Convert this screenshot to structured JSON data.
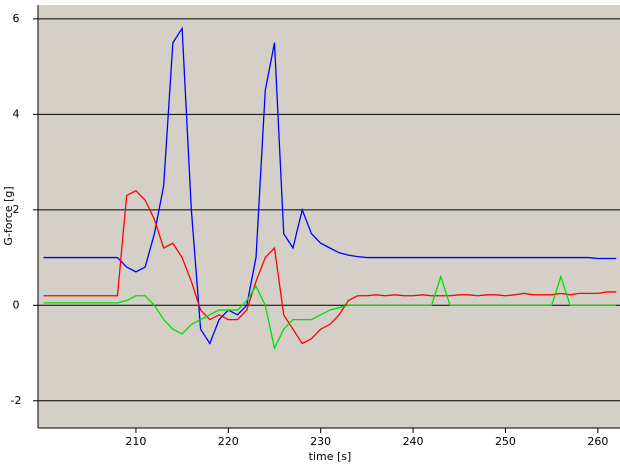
{
  "chart_data": {
    "type": "line",
    "x_label": "time [s]",
    "y_label": "G-force [g]",
    "x": [
      200,
      201,
      202,
      203,
      204,
      205,
      206,
      207,
      208,
      209,
      210,
      211,
      212,
      213,
      214,
      215,
      216,
      217,
      218,
      219,
      220,
      221,
      222,
      223,
      224,
      225,
      226,
      227,
      228,
      229,
      230,
      231,
      232,
      233,
      234,
      235,
      236,
      237,
      238,
      239,
      240,
      241,
      242,
      243,
      244,
      245,
      246,
      247,
      248,
      249,
      250,
      251,
      252,
      253,
      254,
      255,
      256,
      257,
      258,
      259,
      260,
      261,
      262
    ],
    "series": [
      {
        "color": "#0000ff",
        "values": [
          1.0,
          1.0,
          1.0,
          1.0,
          1.0,
          1.0,
          1.0,
          1.0,
          1.0,
          0.8,
          0.7,
          0.8,
          1.5,
          2.5,
          5.5,
          5.8,
          2.0,
          -0.5,
          -0.8,
          -0.3,
          -0.1,
          -0.2,
          0.0,
          1.0,
          4.5,
          5.5,
          1.5,
          1.2,
          2.0,
          1.5,
          1.3,
          1.2,
          1.1,
          1.05,
          1.02,
          1.0,
          1.0,
          1.0,
          1.0,
          1.0,
          1.0,
          1.0,
          1.0,
          1.0,
          1.0,
          1.0,
          1.0,
          1.0,
          1.0,
          1.0,
          1.0,
          1.0,
          1.0,
          1.0,
          1.0,
          1.0,
          1.0,
          1.0,
          1.0,
          1.0,
          0.98,
          0.98,
          0.98
        ]
      },
      {
        "color": "#ff0000",
        "values": [
          0.2,
          0.2,
          0.2,
          0.2,
          0.2,
          0.2,
          0.2,
          0.2,
          0.2,
          2.3,
          2.4,
          2.2,
          1.8,
          1.2,
          1.3,
          1.0,
          0.5,
          -0.1,
          -0.3,
          -0.2,
          -0.3,
          -0.3,
          -0.1,
          0.5,
          1.0,
          1.2,
          -0.2,
          -0.5,
          -0.8,
          -0.7,
          -0.5,
          -0.4,
          -0.2,
          0.1,
          0.2,
          0.2,
          0.22,
          0.2,
          0.22,
          0.2,
          0.2,
          0.22,
          0.2,
          0.2,
          0.2,
          0.22,
          0.22,
          0.2,
          0.22,
          0.22,
          0.2,
          0.22,
          0.25,
          0.22,
          0.22,
          0.22,
          0.25,
          0.22,
          0.25,
          0.25,
          0.25,
          0.28,
          0.28
        ]
      },
      {
        "color": "#00e000",
        "values": [
          0.05,
          0.05,
          0.05,
          0.05,
          0.05,
          0.05,
          0.05,
          0.05,
          0.05,
          0.1,
          0.2,
          0.2,
          0.0,
          -0.3,
          -0.5,
          -0.6,
          -0.4,
          -0.3,
          -0.2,
          -0.1,
          -0.1,
          -0.1,
          0.1,
          0.4,
          0.0,
          -0.9,
          -0.5,
          -0.3,
          -0.3,
          -0.3,
          -0.2,
          -0.1,
          -0.05,
          0.0,
          0.0,
          0.0,
          0.0,
          0.0,
          0.0,
          0.0,
          0.0,
          0.0,
          0.0,
          0.6,
          0.0,
          0.0,
          0.0,
          0.0,
          0.0,
          0.0,
          0.0,
          0.0,
          0.0,
          0.0,
          0.0,
          0.0,
          0.6,
          0.0,
          0.0,
          0.0,
          0.0,
          0.0,
          0.0
        ]
      }
    ],
    "xlim": [
      199.4,
      262.4
    ],
    "xticks": [
      210,
      220,
      230,
      240,
      250,
      260
    ],
    "ylim": [
      -2.57,
      6.29
    ],
    "yticks": [
      -2,
      0,
      2,
      4,
      6
    ],
    "grid": true
  }
}
